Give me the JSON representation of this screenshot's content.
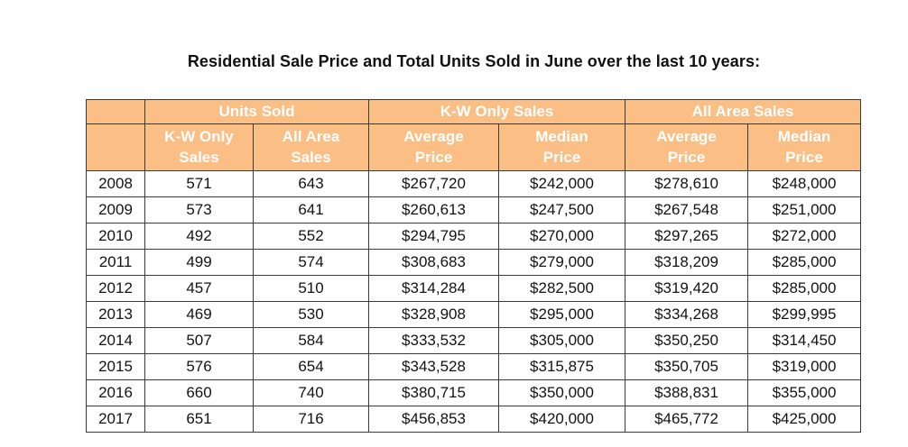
{
  "page": {
    "title": "Residential Sale Price and Total Units Sold in June over the last 10 years:"
  },
  "colors": {
    "header_background": "#FBBE85",
    "header_text": "#FFFFFF",
    "table_border": "#3A3A3A",
    "body_text": "#131313"
  },
  "table": {
    "groups": [
      "Units Sold",
      "K-W Only Sales",
      "All Area Sales"
    ],
    "sub_headers": [
      "K-W Only\nSales",
      "All Area\nSales",
      "Average\nPrice",
      "Median\nPrice",
      "Average\nPrice",
      "Median\nPrice"
    ],
    "rows": [
      [
        "2008",
        "571",
        "643",
        "$267,720",
        "$242,000",
        "$278,610",
        "$248,000"
      ],
      [
        "2009",
        "573",
        "641",
        "$260,613",
        "$247,500",
        "$267,548",
        "$251,000"
      ],
      [
        "2010",
        "492",
        "552",
        "$294,795",
        "$270,000",
        "$297,265",
        "$272,000"
      ],
      [
        "2011",
        "499",
        "574",
        "$308,683",
        "$279,000",
        "$318,209",
        "$285,000"
      ],
      [
        "2012",
        "457",
        "510",
        "$314,284",
        "$282,500",
        "$319,420",
        "$285,000"
      ],
      [
        "2013",
        "469",
        "530",
        "$328,908",
        "$295,000",
        "$334,268",
        "$299,995"
      ],
      [
        "2014",
        "507",
        "584",
        "$333,532",
        "$305,000",
        "$350,250",
        "$314,450"
      ],
      [
        "2015",
        "576",
        "654",
        "$343,528",
        "$315,875",
        "$350,705",
        "$319,000"
      ],
      [
        "2016",
        "660",
        "740",
        "$380,715",
        "$350,000",
        "$388,831",
        "$355,000"
      ],
      [
        "2017",
        "651",
        "716",
        "$456,853",
        "$420,000",
        "$465,772",
        "$425,000"
      ]
    ]
  }
}
